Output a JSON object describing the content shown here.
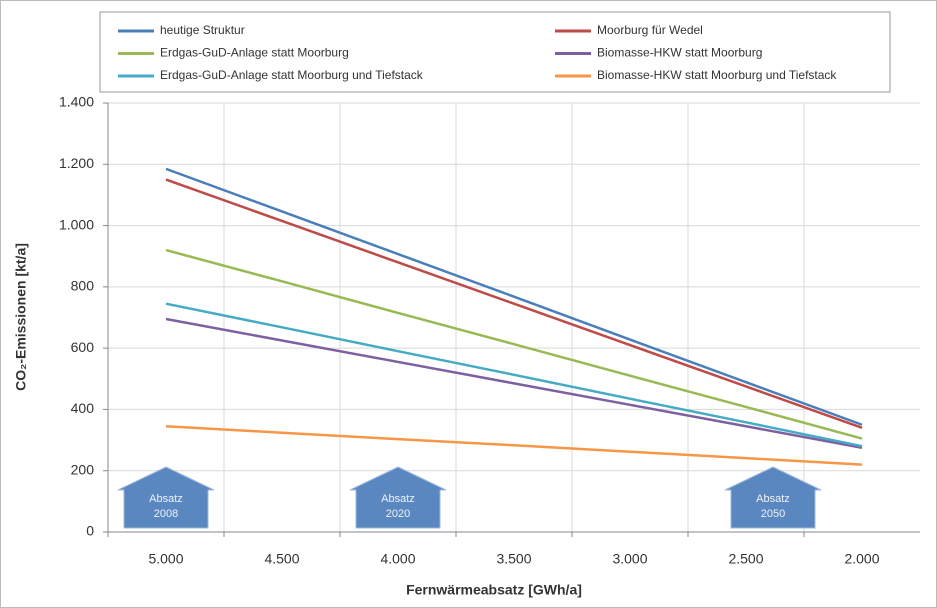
{
  "chart_data": {
    "type": "line",
    "categories": [
      "5.000",
      "4.500",
      "4.000",
      "3.500",
      "3.000",
      "2.500",
      "2.000"
    ],
    "x_label": "Fernwärmeabsatz [GWh/a]",
    "y_label": "CO₂-Emissionen [kt/a]",
    "ylim": [
      0,
      1400
    ],
    "yticks": [
      0,
      200,
      400,
      600,
      800,
      {
        "value": 1000,
        "label": "1.000"
      },
      {
        "value": 1200,
        "label": "1.200"
      },
      {
        "value": 1400,
        "label": "1.400"
      }
    ],
    "grid": true,
    "series": [
      {
        "name": "heutige Struktur",
        "color": "#4a7ebb",
        "values": [
          1185,
          1046,
          907,
          768,
          628,
          489,
          350
        ]
      },
      {
        "name": "Moorburg für Wedel",
        "color": "#be4b48",
        "values": [
          1150,
          1015,
          880,
          745,
          610,
          475,
          340
        ]
      },
      {
        "name": "Erdgas-GuD-Anlage statt Moorburg",
        "color": "#98b954",
        "values": [
          920,
          818,
          715,
          613,
          510,
          408,
          305
        ]
      },
      {
        "name": "Biomasse-HKW statt Moorburg",
        "color": "#7d60a0",
        "values": [
          695,
          625,
          555,
          485,
          415,
          345,
          275
        ]
      },
      {
        "name": "Erdgas-GuD-Anlage statt Moorburg und Tiefstack",
        "color": "#46aac5",
        "values": [
          745,
          668,
          590,
          513,
          435,
          358,
          280
        ]
      },
      {
        "name": "Biomasse-HKW statt Moorburg und Tiefstack",
        "color": "#f79646",
        "values": [
          345,
          324,
          303,
          283,
          262,
          241,
          220
        ]
      }
    ],
    "annotations": [
      {
        "lines": [
          "Absatz",
          "2008"
        ]
      },
      {
        "lines": [
          "Absatz",
          "2020"
        ]
      },
      {
        "lines": [
          "Absatz",
          "2050"
        ]
      }
    ]
  }
}
